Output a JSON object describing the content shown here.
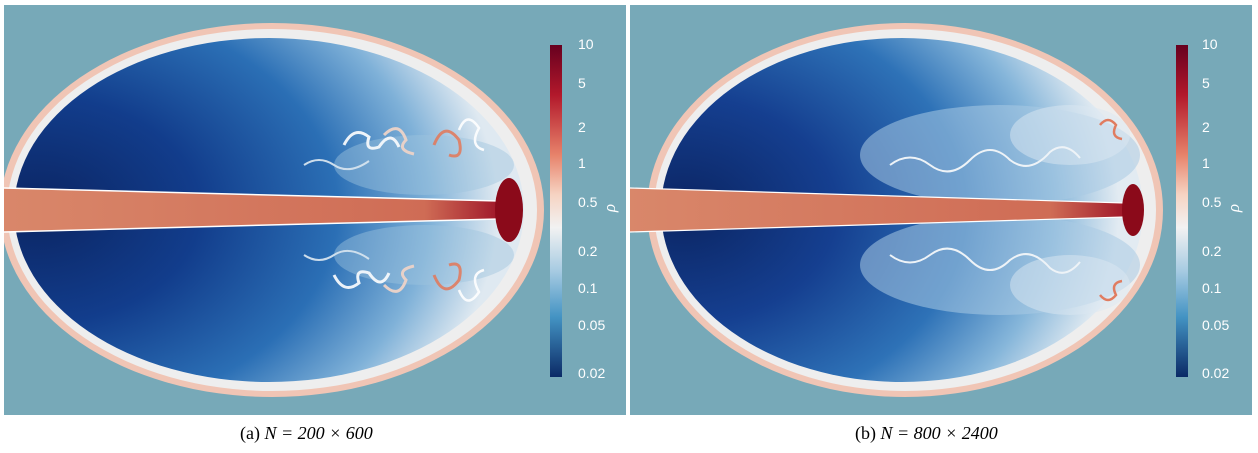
{
  "colorbar": {
    "symbol": "ρ",
    "ticks": [
      "10",
      "5",
      "2",
      "1",
      "0.5",
      "0.2",
      "0.1",
      "0.05",
      "0.02"
    ]
  },
  "panels": [
    {
      "id": "a",
      "caption_prefix": "(a)",
      "caption_expr": "N = 200 × 600"
    },
    {
      "id": "b",
      "caption_prefix": "(b)",
      "caption_expr": "N = 800 × 2400"
    }
  ],
  "colors": {
    "background": "#77a9b8",
    "shell_outer": "#e9e9ea",
    "shell_red": "#e8967a",
    "cavity_light": "#6fa3d0",
    "cavity_dark": "#0d2c6e",
    "jet": "#d98566",
    "head": "#8b0a1a"
  }
}
